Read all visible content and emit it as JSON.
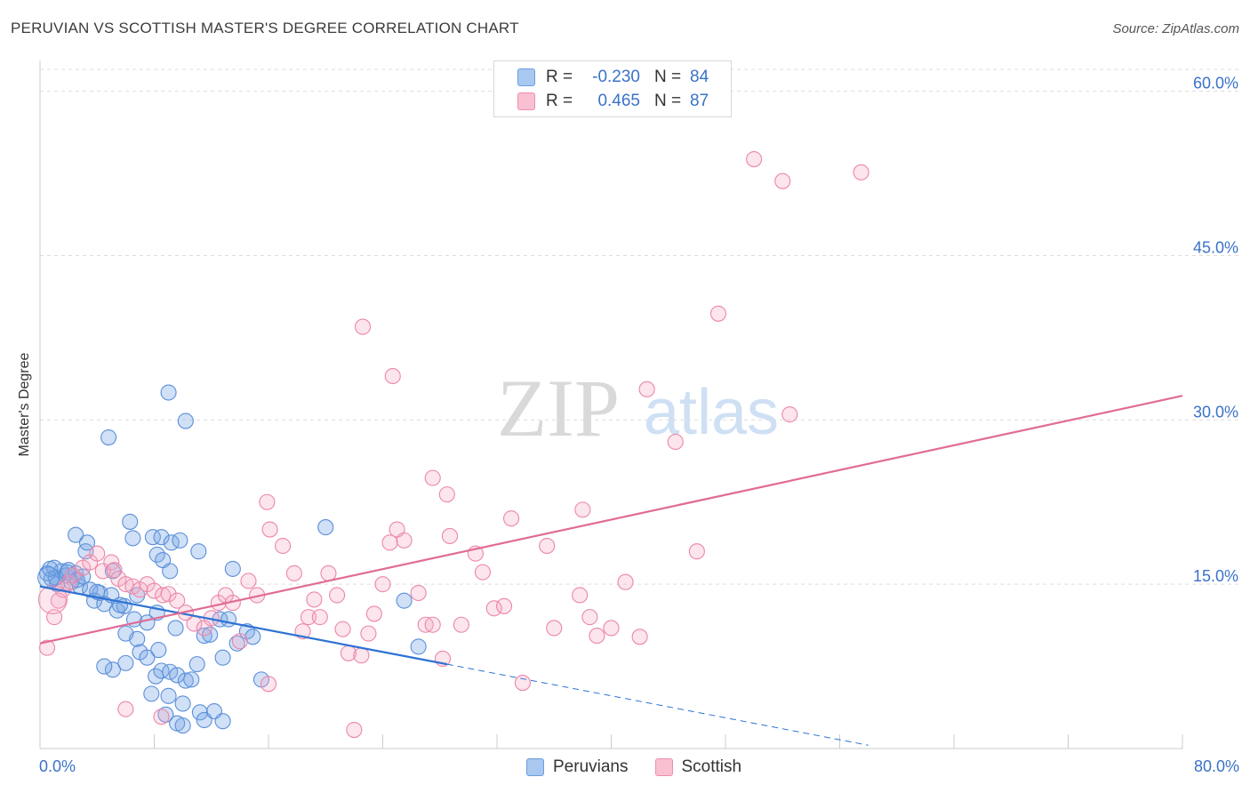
{
  "header": {
    "title": "PERUVIAN VS SCOTTISH MASTER'S DEGREE CORRELATION CHART",
    "source": "Source: ZipAtlas.com"
  },
  "legend": {
    "rows": [
      {
        "r_label": "R =",
        "r_value": "-0.230",
        "n_label": "N =",
        "n_value": "84",
        "color": "#a9c8f0",
        "border": "#6a9ee0"
      },
      {
        "r_label": "R =",
        "r_value": "0.465",
        "n_label": "N =",
        "n_value": "87",
        "color": "#f9c0d2",
        "border": "#ee8fae"
      }
    ]
  },
  "bottom_legend": {
    "peruvians": "Peruvians",
    "scottish": "Scottish"
  },
  "watermark": {
    "zip": "ZIP",
    "atlas": "atlas"
  },
  "chart_data": {
    "type": "scatter",
    "ylabel": "Master's Degree",
    "xlabel": "",
    "xlim": [
      0,
      80
    ],
    "ylim": [
      0,
      62
    ],
    "x_tick_labels": [
      "0.0%",
      "80.0%"
    ],
    "y_ticks": [
      15,
      30,
      45,
      60
    ],
    "y_tick_labels": [
      "15.0%",
      "30.0%",
      "45.0%",
      "60.0%"
    ],
    "grid": true,
    "legend_placement": "top-center",
    "colors": {
      "peruvians": "#5b8fd9",
      "scottish": "#ec86a8",
      "peruvians_line": "#2e72d2",
      "scottish_line": "#e06c96",
      "tick_label": "#3a72c8"
    },
    "series": [
      {
        "name": "Peruvians",
        "trend": {
          "x0": 0,
          "y0": 14.8,
          "x1": 28.5,
          "y1": 7.7,
          "dash_to_x": 58,
          "dash_to_y": 0.3
        },
        "points": [
          [
            0.5,
            16.0
          ],
          [
            0.8,
            15.5
          ],
          [
            1.0,
            16.5
          ],
          [
            1.2,
            15.0
          ],
          [
            1.5,
            16.2
          ],
          [
            1.8,
            15.8
          ],
          [
            2.0,
            16.3
          ],
          [
            2.2,
            15.2
          ],
          [
            2.5,
            16.0
          ],
          [
            2.8,
            14.8
          ],
          [
            1.1,
            15.6
          ],
          [
            1.9,
            16.1
          ],
          [
            0.7,
            16.4
          ],
          [
            2.6,
            15.4
          ],
          [
            3.0,
            15.7
          ],
          [
            3.5,
            14.5
          ],
          [
            4.2,
            14.2
          ],
          [
            3.8,
            13.5
          ],
          [
            4.5,
            13.2
          ],
          [
            5.0,
            14.0
          ],
          [
            3.2,
            18.0
          ],
          [
            2.5,
            19.5
          ],
          [
            3.3,
            18.8
          ],
          [
            5.1,
            16.2
          ],
          [
            6.3,
            20.7
          ],
          [
            6.5,
            19.2
          ],
          [
            7.9,
            19.3
          ],
          [
            8.5,
            19.3
          ],
          [
            9.2,
            18.8
          ],
          [
            9.8,
            19.0
          ],
          [
            8.2,
            17.7
          ],
          [
            8.6,
            17.2
          ],
          [
            9.1,
            16.2
          ],
          [
            11.1,
            18.0
          ],
          [
            13.5,
            16.4
          ],
          [
            5.4,
            12.6
          ],
          [
            5.9,
            13.0
          ],
          [
            6.6,
            11.8
          ],
          [
            7.5,
            11.5
          ],
          [
            8.2,
            12.4
          ],
          [
            6.0,
            10.5
          ],
          [
            6.8,
            10.0
          ],
          [
            7.0,
            8.8
          ],
          [
            7.5,
            8.3
          ],
          [
            8.3,
            9.0
          ],
          [
            9.5,
            11.0
          ],
          [
            11.5,
            10.3
          ],
          [
            11.9,
            10.4
          ],
          [
            12.6,
            11.8
          ],
          [
            12.8,
            8.3
          ],
          [
            13.2,
            11.8
          ],
          [
            13.8,
            9.6
          ],
          [
            14.5,
            10.7
          ],
          [
            14.9,
            10.2
          ],
          [
            5.1,
            7.2
          ],
          [
            4.5,
            7.5
          ],
          [
            6.0,
            7.8
          ],
          [
            8.1,
            6.6
          ],
          [
            8.5,
            7.1
          ],
          [
            9.1,
            7.0
          ],
          [
            9.6,
            6.7
          ],
          [
            10.2,
            6.2
          ],
          [
            10.6,
            6.3
          ],
          [
            11.0,
            7.7
          ],
          [
            15.5,
            6.3
          ],
          [
            7.8,
            5.0
          ],
          [
            9.0,
            4.8
          ],
          [
            10.0,
            4.1
          ],
          [
            11.2,
            3.3
          ],
          [
            11.5,
            2.6
          ],
          [
            12.2,
            3.4
          ],
          [
            12.8,
            2.5
          ],
          [
            8.8,
            3.1
          ],
          [
            9.6,
            2.3
          ],
          [
            10.0,
            2.1
          ],
          [
            9.0,
            32.5
          ],
          [
            10.2,
            29.9
          ],
          [
            4.8,
            28.4
          ],
          [
            20.0,
            20.2
          ],
          [
            25.5,
            13.5
          ],
          [
            26.5,
            9.3
          ],
          [
            4.0,
            14.3
          ],
          [
            5.6,
            13.1
          ],
          [
            6.8,
            14.0
          ]
        ]
      },
      {
        "name": "Scottish",
        "trend": {
          "x0": 0,
          "y0": 9.6,
          "x1": 80,
          "y1": 32.2
        },
        "points": [
          [
            0.5,
            9.2
          ],
          [
            1.0,
            12.0
          ],
          [
            1.3,
            13.5
          ],
          [
            1.6,
            14.5
          ],
          [
            2.0,
            15.1
          ],
          [
            2.3,
            15.8
          ],
          [
            3.0,
            16.5
          ],
          [
            3.5,
            17.0
          ],
          [
            4.0,
            17.8
          ],
          [
            4.4,
            16.2
          ],
          [
            5.0,
            17.0
          ],
          [
            5.2,
            16.3
          ],
          [
            5.5,
            15.5
          ],
          [
            6.0,
            15.0
          ],
          [
            6.5,
            14.8
          ],
          [
            7.0,
            14.5
          ],
          [
            7.5,
            15.0
          ],
          [
            8.0,
            14.4
          ],
          [
            8.6,
            14.0
          ],
          [
            9.0,
            14.1
          ],
          [
            9.6,
            13.5
          ],
          [
            10.2,
            12.4
          ],
          [
            10.8,
            11.4
          ],
          [
            11.5,
            11.0
          ],
          [
            12.0,
            11.9
          ],
          [
            12.5,
            13.3
          ],
          [
            13.0,
            14.0
          ],
          [
            13.5,
            13.3
          ],
          [
            14.0,
            9.8
          ],
          [
            14.6,
            15.3
          ],
          [
            15.2,
            14.0
          ],
          [
            15.9,
            22.5
          ],
          [
            16.1,
            20.0
          ],
          [
            17.0,
            18.5
          ],
          [
            17.8,
            16.0
          ],
          [
            18.4,
            10.7
          ],
          [
            18.8,
            12.0
          ],
          [
            19.2,
            13.6
          ],
          [
            19.6,
            12.0
          ],
          [
            20.2,
            16.0
          ],
          [
            20.8,
            14.0
          ],
          [
            21.2,
            10.9
          ],
          [
            21.6,
            8.7
          ],
          [
            22.5,
            8.5
          ],
          [
            23.0,
            10.5
          ],
          [
            23.4,
            12.3
          ],
          [
            24.0,
            15.0
          ],
          [
            24.5,
            18.8
          ],
          [
            25.0,
            20.0
          ],
          [
            25.5,
            19.0
          ],
          [
            26.5,
            14.2
          ],
          [
            27.0,
            11.3
          ],
          [
            27.5,
            11.3
          ],
          [
            28.2,
            8.2
          ],
          [
            28.7,
            19.4
          ],
          [
            29.5,
            11.3
          ],
          [
            30.5,
            17.8
          ],
          [
            31.0,
            16.1
          ],
          [
            31.8,
            12.8
          ],
          [
            32.5,
            13.0
          ],
          [
            33.0,
            21.0
          ],
          [
            33.8,
            6.0
          ],
          [
            35.5,
            18.5
          ],
          [
            36.0,
            11.0
          ],
          [
            37.8,
            14.0
          ],
          [
            38.5,
            12.0
          ],
          [
            39.0,
            10.3
          ],
          [
            40.0,
            11.0
          ],
          [
            41.0,
            15.2
          ],
          [
            42.0,
            10.2
          ],
          [
            22.6,
            38.5
          ],
          [
            24.7,
            34.0
          ],
          [
            27.5,
            24.7
          ],
          [
            28.5,
            23.2
          ],
          [
            38.0,
            21.8
          ],
          [
            42.5,
            32.8
          ],
          [
            44.5,
            28.0
          ],
          [
            46.0,
            18.0
          ],
          [
            47.5,
            39.7
          ],
          [
            52.5,
            30.5
          ],
          [
            50.0,
            53.8
          ],
          [
            52.0,
            51.8
          ],
          [
            57.5,
            52.6
          ],
          [
            6.0,
            3.6
          ],
          [
            8.5,
            2.9
          ],
          [
            16.0,
            5.9
          ],
          [
            22.0,
            1.7
          ]
        ]
      }
    ]
  }
}
